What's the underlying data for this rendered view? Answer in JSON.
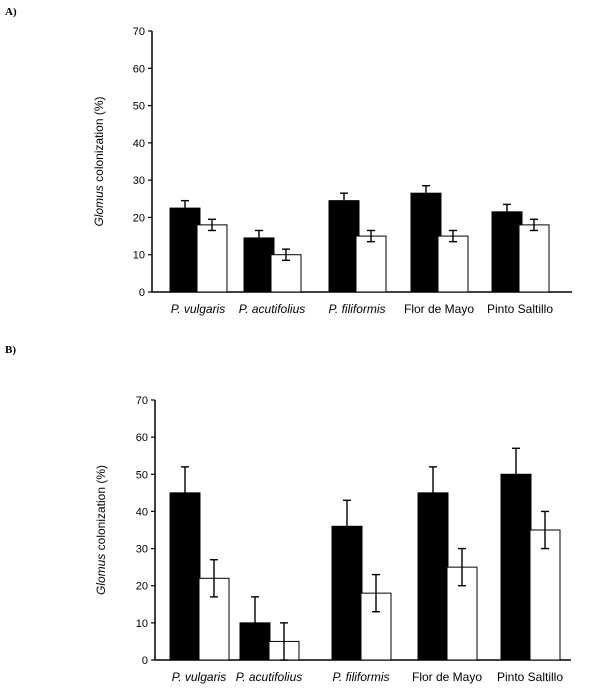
{
  "chart_data": [
    {
      "type": "bar",
      "panel": "A)",
      "ylabel": {
        "italic": "Glomus",
        "rest": " colonization (%)"
      },
      "ylim": [
        0,
        70
      ],
      "yticks": [
        0,
        10,
        20,
        30,
        40,
        50,
        60,
        70
      ],
      "categories": [
        {
          "label": "P. vulgaris",
          "italic": true
        },
        {
          "label": "P. acutifolius",
          "italic": true
        },
        {
          "label": "P. filiformis",
          "italic": true
        },
        {
          "label": "Flor de Mayo",
          "italic": false
        },
        {
          "label": "Pinto Saltillo",
          "italic": false
        }
      ],
      "series": [
        {
          "name": "filled",
          "color": "#000000",
          "values": [
            22.5,
            14.5,
            24.5,
            26.5,
            21.5
          ],
          "errors": [
            2,
            2,
            2,
            2,
            2
          ]
        },
        {
          "name": "open",
          "color": "#ffffff",
          "values": [
            18,
            10,
            15,
            15,
            18
          ],
          "errors": [
            1.5,
            1.5,
            1.5,
            1.5,
            1.5
          ]
        }
      ]
    },
    {
      "type": "bar",
      "panel": "B)",
      "ylabel": {
        "italic": "Glomus",
        "rest": " colonization (%)"
      },
      "ylim": [
        0,
        70
      ],
      "yticks": [
        0,
        10,
        20,
        30,
        40,
        50,
        60,
        70
      ],
      "categories": [
        {
          "label": "P. vulgaris",
          "italic": true
        },
        {
          "label": "P. acutifolius",
          "italic": true
        },
        {
          "label": "P. filiformis",
          "italic": true
        },
        {
          "label": "Flor de Mayo",
          "italic": false
        },
        {
          "label": "Pinto Saltillo",
          "italic": false
        }
      ],
      "series": [
        {
          "name": "filled",
          "color": "#000000",
          "values": [
            45,
            10,
            36,
            45,
            50
          ],
          "errors": [
            7,
            7,
            7,
            7,
            7
          ]
        },
        {
          "name": "open",
          "color": "#ffffff",
          "values": [
            22,
            5,
            18,
            25,
            35
          ],
          "errors": [
            5,
            5,
            5,
            5,
            5
          ]
        }
      ]
    }
  ]
}
